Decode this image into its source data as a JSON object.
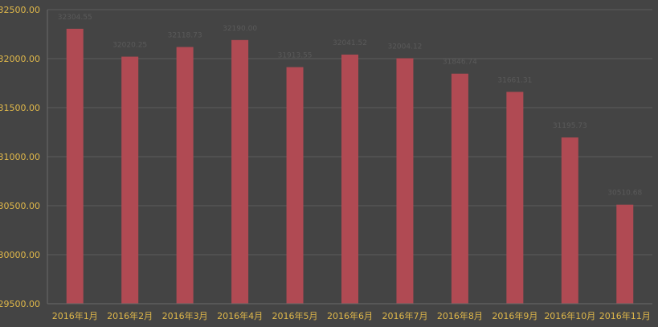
{
  "chart_data": {
    "type": "bar",
    "title": "",
    "xlabel": "",
    "ylabel": "",
    "categories": [
      "2016年1月",
      "2016年2月",
      "2016年3月",
      "2016年4月",
      "2016年5月",
      "2016年6月",
      "2016年7月",
      "2016年8月",
      "2016年9月",
      "2016年10月",
      "2016年11月"
    ],
    "values": [
      32304.55,
      32020.25,
      32118.73,
      32190.0,
      31913.55,
      32041.52,
      32004.12,
      31846.74,
      31661.31,
      31195.73,
      30510.68
    ],
    "data_labels": [
      "32304.55",
      "32020.25",
      "32118.73",
      "32190.00",
      "31913.55",
      "32041.52",
      "32004.12",
      "31846.74",
      "31661.31",
      "31195.73",
      "30510.68"
    ],
    "ylim": [
      29500,
      32500
    ],
    "yticks": [
      "29500.00",
      "30000.00",
      "30500.00",
      "31000.00",
      "31500.00",
      "32000.00",
      "32500.00"
    ],
    "ytick_values": [
      29500,
      30000,
      30500,
      31000,
      31500,
      32000,
      32500
    ],
    "grid": true,
    "legend": "none",
    "colors": {
      "bar": "#b04a53",
      "background": "#444444",
      "tick_text": "#e0b84a",
      "grid": "#5c5c5c",
      "data_label": "#5a5a5a"
    }
  }
}
